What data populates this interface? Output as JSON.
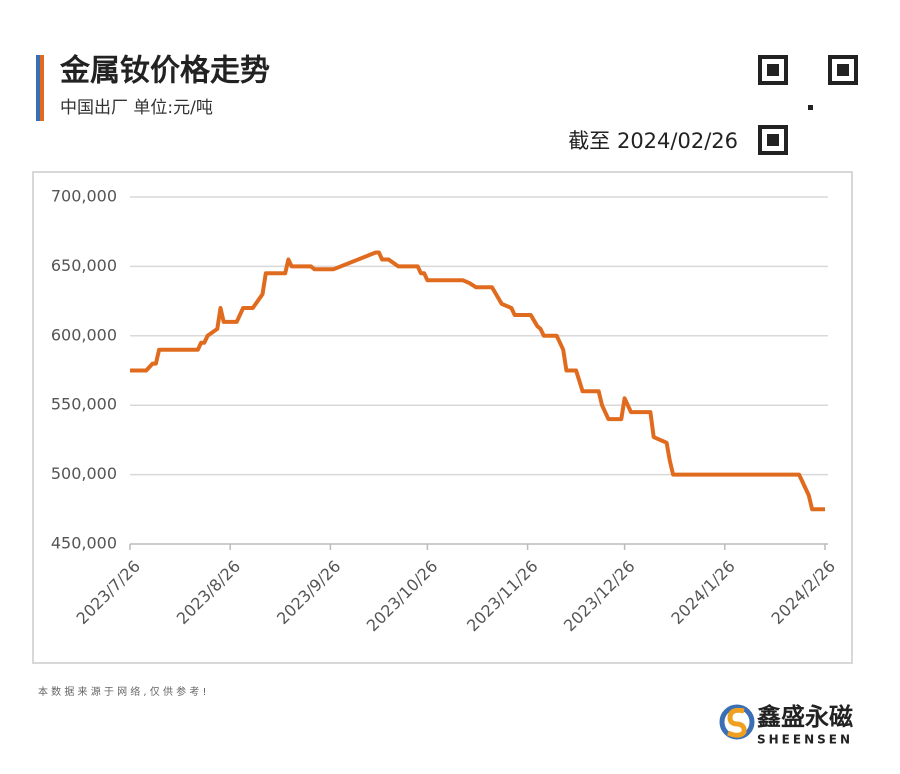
{
  "chart_data": {
    "type": "line",
    "title": "金属钕价格走势",
    "subtitle": "中国出厂  单位:元/吨",
    "date_note": "截至 2024/02/26",
    "x": [
      "2023/7/26",
      "2023/7/31",
      "2023/8/2",
      "2023/8/3",
      "2023/8/4",
      "2023/8/16",
      "2023/8/17",
      "2023/8/18",
      "2023/8/19",
      "2023/8/22",
      "2023/8/23",
      "2023/8/24",
      "2023/8/28",
      "2023/8/30",
      "2023/9/2",
      "2023/9/5",
      "2023/9/6",
      "2023/9/12",
      "2023/9/13",
      "2023/9/14",
      "2023/9/20",
      "2023/9/21",
      "2023/9/27",
      "2023/10/10",
      "2023/10/11",
      "2023/10/12",
      "2023/10/14",
      "2023/10/17",
      "2023/10/23",
      "2023/10/24",
      "2023/10/25",
      "2023/10/26",
      "2023/11/6",
      "2023/11/8",
      "2023/11/10",
      "2023/11/15",
      "2023/11/18",
      "2023/11/21",
      "2023/11/22",
      "2023/11/27",
      "2023/11/29",
      "2023/11/30",
      "2023/12/1",
      "2023/12/5",
      "2023/12/7",
      "2023/12/8",
      "2023/12/11",
      "2023/12/13",
      "2023/12/18",
      "2023/12/19",
      "2023/12/21",
      "2023/12/25",
      "2023/12/26",
      "2023/12/28",
      "2024/1/3",
      "2024/1/4",
      "2024/1/6",
      "2024/1/8",
      "2024/1/9",
      "2024/1/10",
      "2024/2/18",
      "2024/2/20",
      "2024/2/21",
      "2024/2/22",
      "2024/2/26"
    ],
    "series": [
      {
        "name": "金属钕",
        "color": "#e06b1f",
        "values": [
          575000,
          575000,
          580000,
          580000,
          590000,
          590000,
          595000,
          595000,
          600000,
          605000,
          620000,
          610000,
          610000,
          620000,
          620000,
          630000,
          645000,
          645000,
          655000,
          650000,
          650000,
          648000,
          648000,
          660000,
          660000,
          655000,
          655000,
          650000,
          650000,
          645000,
          645000,
          640000,
          640000,
          638000,
          635000,
          635000,
          623000,
          620000,
          615000,
          615000,
          607000,
          605000,
          600000,
          600000,
          590000,
          575000,
          575000,
          560000,
          560000,
          550000,
          540000,
          540000,
          555000,
          545000,
          545000,
          527000,
          525000,
          523000,
          510000,
          500000,
          500000,
          490000,
          485000,
          475000,
          475000
        ]
      }
    ],
    "xlim": [
      "2023/7/26",
      "2024/2/26"
    ],
    "xticks": [
      "2023/7/26",
      "2023/8/26",
      "2023/9/26",
      "2023/10/26",
      "2023/11/26",
      "2023/12/26",
      "2024/1/26",
      "2024/2/26"
    ],
    "ylim": [
      450000,
      700000
    ],
    "yticks": [
      {
        "value": 450000,
        "label": "450,000"
      },
      {
        "value": 500000,
        "label": "500,000"
      },
      {
        "value": 550000,
        "label": "550,000"
      },
      {
        "value": 600000,
        "label": "600,000"
      },
      {
        "value": 650000,
        "label": "650,000"
      },
      {
        "value": 700000,
        "label": "700,000"
      }
    ],
    "grid": true,
    "footnote": "本 数 据 来 源 于 网 络 , 仅 供 参 考 !",
    "brand": "鑫盛永磁",
    "brand_en": "SHEENSEN"
  }
}
